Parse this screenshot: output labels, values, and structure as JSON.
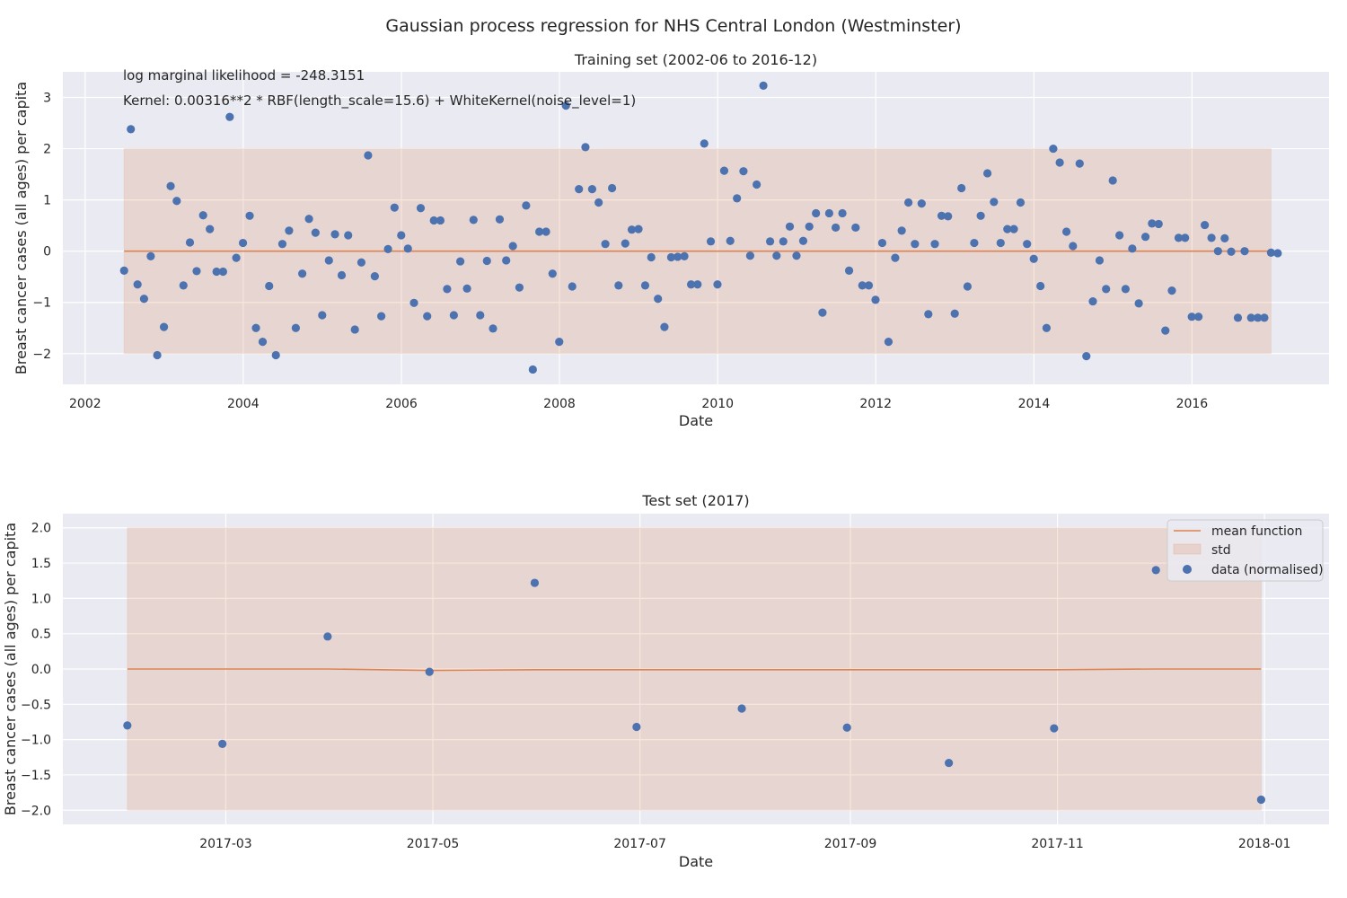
{
  "figure": {
    "title": "Gaussian process regression for NHS Central London (Westminster)"
  },
  "colors": {
    "background": "#ffffff",
    "axes_bg": "#eaeaf2",
    "grid": "#ffffff",
    "mean": "#dd8452",
    "band": "#dd8452",
    "points": "#4c72b0",
    "text": "#262626"
  },
  "chart_data": [
    {
      "type": "scatter",
      "title": "Training set (2002-06 to 2016-12)",
      "xlabel": "Date",
      "ylabel": "Breast cancer cases (all ages) per capita",
      "xlim": [
        "2001-09-20",
        "2017-09-25"
      ],
      "ylim": [
        -2.6,
        3.5
      ],
      "xticks": [
        {
          "date": "2002-01-01",
          "label": "2002"
        },
        {
          "date": "2004-01-01",
          "label": "2004"
        },
        {
          "date": "2006-01-01",
          "label": "2006"
        },
        {
          "date": "2008-01-01",
          "label": "2008"
        },
        {
          "date": "2010-01-01",
          "label": "2010"
        },
        {
          "date": "2012-01-01",
          "label": "2012"
        },
        {
          "date": "2014-01-01",
          "label": "2014"
        },
        {
          "date": "2016-01-01",
          "label": "2016"
        }
      ],
      "yticks": [
        -2,
        -1,
        0,
        1,
        2,
        3
      ],
      "ytick_labels": [
        "−2",
        "−1",
        "0",
        "1",
        "2",
        "3"
      ],
      "grid": true,
      "annotations": [
        "log marginal likelihood = -248.3151",
        "Kernel: 0.00316**2 * RBF(length_scale=15.6) + WhiteKernel(noise_level=1)"
      ],
      "mean_function": {
        "x": [
          "2002-06-30",
          "2016-12-31"
        ],
        "y": [
          0.0,
          0.0
        ]
      },
      "std_band": {
        "x": [
          "2002-06-30",
          "2016-12-31"
        ],
        "lower": [
          -2.0,
          -2.0
        ],
        "upper": [
          2.0,
          2.0
        ]
      },
      "data": {
        "start_month": "2002-06",
        "y": [
          -0.38,
          2.38,
          -0.65,
          -0.93,
          -0.1,
          -2.03,
          -1.48,
          1.27,
          0.98,
          -0.67,
          0.17,
          -0.39,
          0.7,
          0.43,
          -0.4,
          -0.4,
          2.62,
          -0.13,
          0.16,
          0.69,
          -1.5,
          -1.77,
          -0.68,
          -2.03,
          0.14,
          0.4,
          -1.5,
          -0.44,
          0.63,
          0.36,
          -1.25,
          -0.18,
          0.33,
          -0.47,
          0.31,
          -1.53,
          -0.22,
          1.87,
          -0.49,
          -1.27,
          0.04,
          0.85,
          0.31,
          0.05,
          -1.01,
          0.84,
          -1.27,
          0.6,
          0.6,
          -0.74,
          -1.25,
          -0.2,
          -0.73,
          0.61,
          -1.25,
          -0.19,
          -1.51,
          0.62,
          -0.18,
          0.1,
          -0.71,
          0.89,
          -2.31,
          0.38,
          0.38,
          -0.44,
          -1.77,
          2.84,
          -0.69,
          1.21,
          2.03,
          1.21,
          0.95,
          0.14,
          1.23,
          -0.67,
          0.15,
          0.42,
          0.43,
          -0.67,
          -0.12,
          -0.93,
          -1.48,
          -0.12,
          -0.11,
          -0.1,
          -0.65,
          -0.65,
          2.1,
          0.19,
          -0.65,
          1.57,
          0.2,
          1.03,
          1.56,
          -0.09,
          1.3,
          3.23,
          0.19,
          -0.09,
          0.19,
          0.48,
          -0.09,
          0.2,
          0.48,
          0.74,
          -1.2,
          0.74,
          0.46,
          0.74,
          -0.38,
          0.46,
          -0.67,
          -0.67,
          -0.95,
          0.16,
          -1.77,
          -0.13,
          0.4,
          0.95,
          0.14,
          0.93,
          -1.23,
          0.14,
          0.69,
          0.68,
          -1.22,
          1.23,
          -0.69,
          0.16,
          0.69,
          1.52,
          0.96,
          0.16,
          0.43,
          0.43,
          0.95,
          0.14,
          -0.15,
          -0.68,
          -1.5,
          2.0,
          1.73,
          0.38,
          0.1,
          1.71,
          -2.05,
          -0.98,
          -0.18,
          -0.74,
          1.38,
          0.31,
          -0.74,
          0.05,
          -1.02,
          0.28,
          0.54,
          0.53,
          -1.55,
          -0.77,
          0.26,
          0.26,
          -1.28,
          -1.28,
          0.51,
          0.26,
          0.0,
          0.25,
          -0.01,
          -1.3,
          0.0,
          -1.3,
          -1.3,
          -1.3,
          -0.03,
          -0.04
        ]
      }
    },
    {
      "type": "scatter",
      "title": "Test set (2017)",
      "xlabel": "Date",
      "ylabel": "Breast cancer cases (all ages) per capita",
      "xlim": [
        "2017-01-12",
        "2018-01-20"
      ],
      "ylim": [
        -2.2,
        2.2
      ],
      "xticks": [
        {
          "date": "2017-03-01",
          "label": "2017-03"
        },
        {
          "date": "2017-05-01",
          "label": "2017-05"
        },
        {
          "date": "2017-07-01",
          "label": "2017-07"
        },
        {
          "date": "2017-09-01",
          "label": "2017-09"
        },
        {
          "date": "2017-11-01",
          "label": "2017-11"
        },
        {
          "date": "2018-01-01",
          "label": "2018-01"
        }
      ],
      "yticks": [
        -2.0,
        -1.5,
        -1.0,
        -0.5,
        0.0,
        0.5,
        1.0,
        1.5,
        2.0
      ],
      "ytick_labels": [
        "−2.0",
        "−1.5",
        "−1.0",
        "−0.5",
        "0.0",
        "0.5",
        "1.0",
        "1.5",
        "2.0"
      ],
      "grid": true,
      "legend": {
        "position": "top-right",
        "entries": [
          "mean function",
          "std",
          "data (normalised)"
        ]
      },
      "mean_function": {
        "x": [
          "2017-01-31",
          "2017-02-28",
          "2017-03-31",
          "2017-04-30",
          "2017-05-31",
          "2017-06-30",
          "2017-07-31",
          "2017-08-31",
          "2017-09-30",
          "2017-10-31",
          "2017-11-30",
          "2017-12-31"
        ],
        "y": [
          0.0,
          0.0,
          0.0,
          -0.02,
          -0.01,
          -0.01,
          -0.01,
          -0.01,
          -0.01,
          -0.01,
          0.0,
          0.0
        ]
      },
      "std_band": {
        "x": [
          "2017-01-31",
          "2017-12-31"
        ],
        "lower": [
          -2.0,
          -2.0
        ],
        "upper": [
          2.0,
          2.0
        ]
      },
      "data": {
        "x": [
          "2017-01-31",
          "2017-02-28",
          "2017-03-31",
          "2017-04-30",
          "2017-05-31",
          "2017-06-30",
          "2017-07-31",
          "2017-08-31",
          "2017-09-30",
          "2017-10-31",
          "2017-11-30",
          "2017-12-31"
        ],
        "y": [
          -0.8,
          -1.06,
          0.46,
          -0.04,
          1.22,
          -0.82,
          -0.56,
          -0.83,
          -1.33,
          -0.84,
          1.4,
          -1.85
        ]
      }
    }
  ]
}
